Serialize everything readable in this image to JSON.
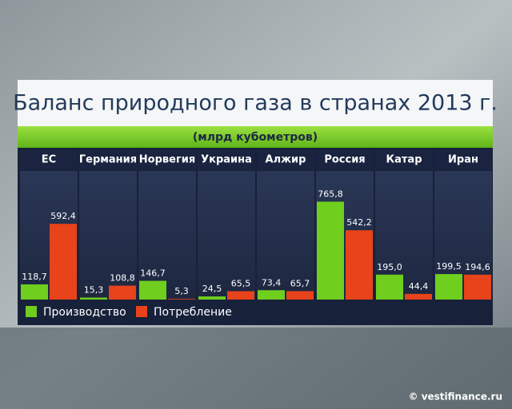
{
  "chart_data": {
    "type": "bar",
    "title": "Баланс природного газа в странах 2013 г.",
    "subtitle": "(млрд кубометров)",
    "categories": [
      "ЕС",
      "Германия",
      "Норвегия",
      "Украина",
      "Алжир",
      "Россия",
      "Катар",
      "Иран"
    ],
    "series": [
      {
        "name": "Производство",
        "color": "#6fce1e",
        "values": [
          118.7,
          15.3,
          146.7,
          24.5,
          73.4,
          765.8,
          195.0,
          199.5
        ],
        "value_labels": [
          "118,7",
          "15,3",
          "146,7",
          "24,5",
          "73,4",
          "765,8",
          "195,0",
          "199,5"
        ]
      },
      {
        "name": "Потребление",
        "color": "#e8431a",
        "values": [
          592.4,
          108.8,
          5.3,
          65.5,
          65.7,
          542.2,
          44.4,
          194.6
        ],
        "value_labels": [
          "592,4",
          "108,8",
          "5,3",
          "65,5",
          "65,7",
          "542,2",
          "44,4",
          "194,6"
        ]
      }
    ],
    "source": "© vestifinance.ru"
  }
}
